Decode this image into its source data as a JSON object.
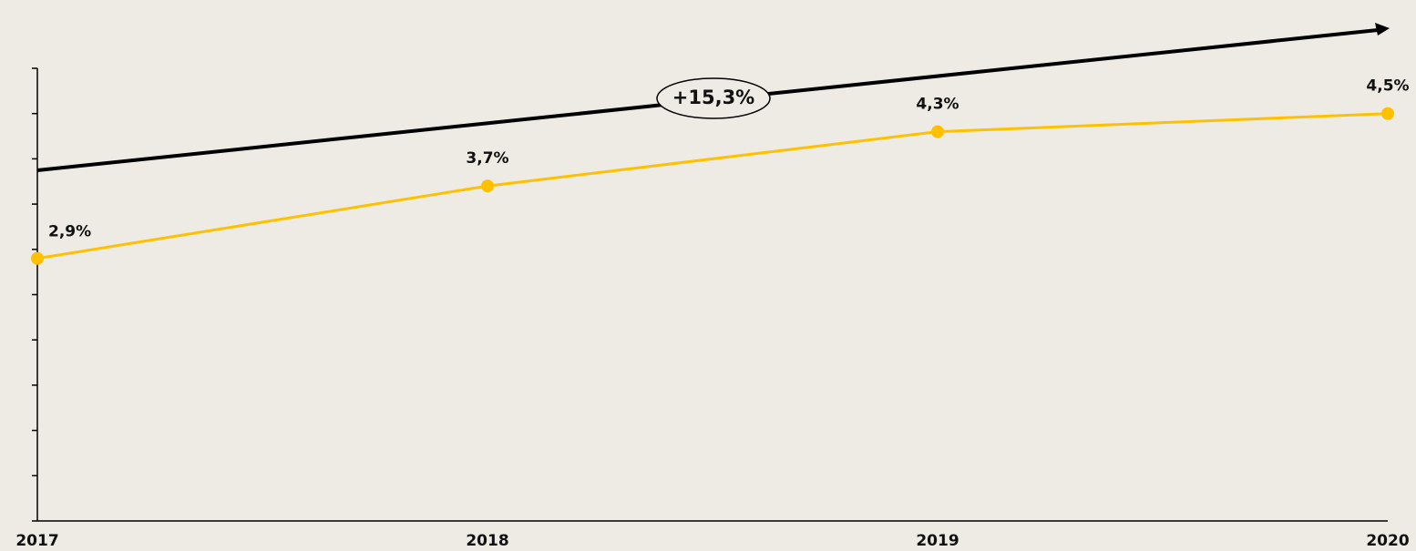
{
  "chart_data": {
    "type": "line",
    "categories": [
      "2017",
      "2018",
      "2019",
      "2020"
    ],
    "series": [
      {
        "color": "#ffc000",
        "values": [
          2.9,
          3.7,
          4.3,
          4.5
        ],
        "value_labels": [
          "2,9%",
          "3,7%",
          "4,3%",
          "4,5%"
        ]
      }
    ],
    "ylim": [
      0,
      5
    ],
    "yticks": [
      0,
      0.5,
      1,
      1.5,
      2,
      2.5,
      3,
      3.5,
      4,
      4.5,
      5
    ],
    "annotation": "+15,3%"
  }
}
